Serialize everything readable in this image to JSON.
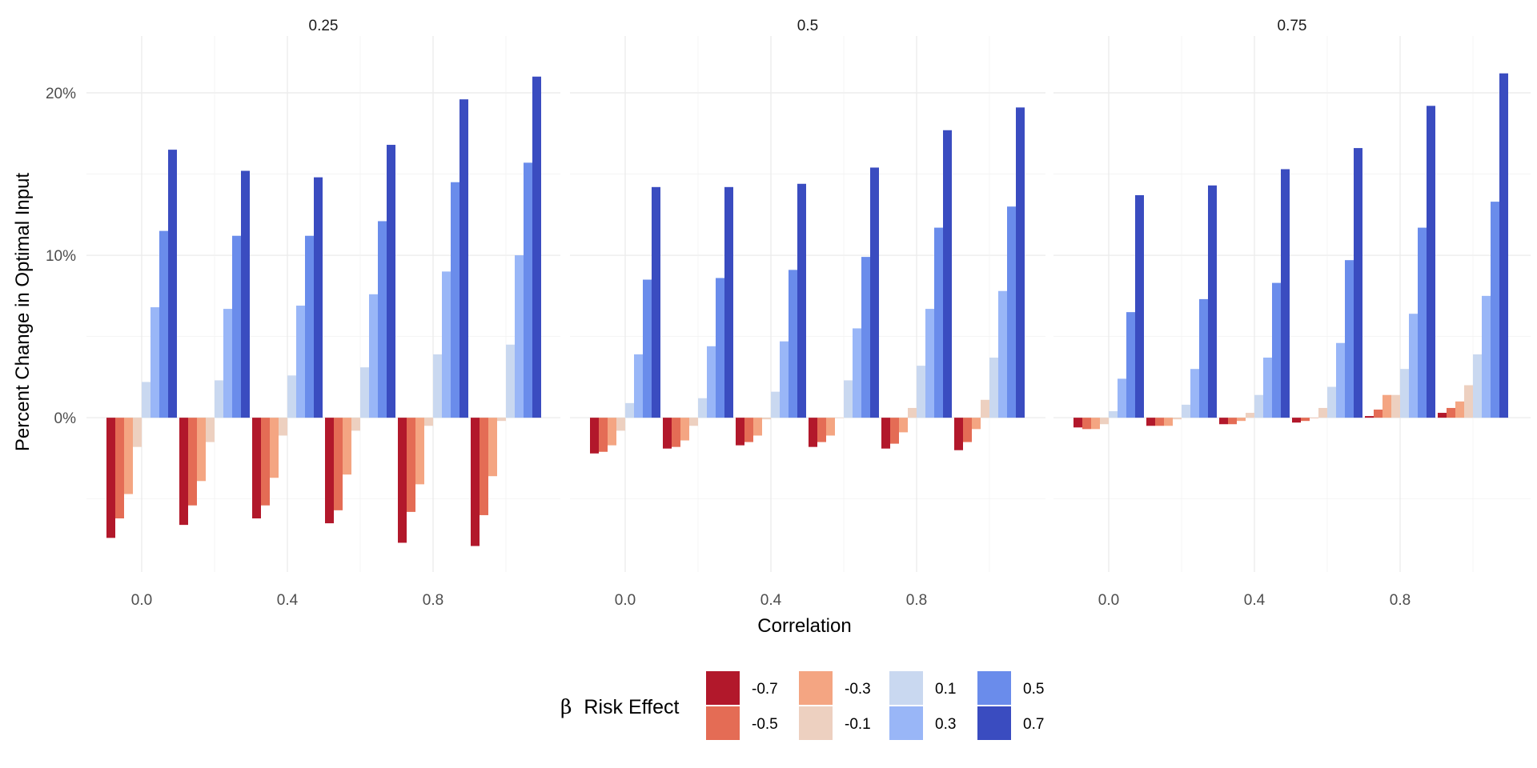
{
  "chart_data": {
    "type": "bar",
    "facets": [
      "0.25",
      "0.5",
      "0.75"
    ],
    "x_ticks": [
      "0.0",
      "0.4",
      "0.8"
    ],
    "correlation_groups": [
      "0.0",
      "0.2",
      "0.4",
      "0.6",
      "0.8",
      "1.0"
    ],
    "y_ticks": [
      "0%",
      "10%",
      "20%"
    ],
    "ylim": [
      -9.5,
      23.5
    ],
    "xlabel": "Correlation",
    "ylabel": "Percent Change in Optimal Input",
    "legend": {
      "title_symbol": "β",
      "title_text": "Risk Effect",
      "position": "bottom"
    },
    "series": [
      {
        "name": "-0.7",
        "color": "#B2182B"
      },
      {
        "name": "-0.5",
        "color": "#E46C55"
      },
      {
        "name": "-0.3",
        "color": "#F4A582"
      },
      {
        "name": "-0.1",
        "color": "#EDD0C0"
      },
      {
        "name": "0.1",
        "color": "#C9D8F0"
      },
      {
        "name": "0.3",
        "color": "#99B6F7"
      },
      {
        "name": "0.5",
        "color": "#6A8CEB"
      },
      {
        "name": "0.7",
        "color": "#3A4CC0"
      }
    ],
    "panels": [
      {
        "facet": "0.25",
        "values": [
          [
            -7.4,
            -6.2,
            -4.7,
            -1.8,
            2.2,
            6.8,
            11.5,
            16.5
          ],
          [
            -6.6,
            -5.4,
            -3.9,
            -1.5,
            2.3,
            6.7,
            11.2,
            15.2
          ],
          [
            -6.2,
            -5.4,
            -3.7,
            -1.1,
            2.6,
            6.9,
            11.2,
            14.8
          ],
          [
            -6.5,
            -5.7,
            -3.5,
            -0.8,
            3.1,
            7.6,
            12.1,
            16.8
          ],
          [
            -7.7,
            -5.8,
            -4.1,
            -0.5,
            3.9,
            9.0,
            14.5,
            19.6
          ],
          [
            -7.9,
            -6.0,
            -3.6,
            -0.2,
            4.5,
            10.0,
            15.7,
            21.0
          ]
        ]
      },
      {
        "facet": "0.5",
        "values": [
          [
            -2.2,
            -2.1,
            -1.7,
            -0.8,
            0.9,
            3.9,
            8.5,
            14.2
          ],
          [
            -1.9,
            -1.8,
            -1.4,
            -0.5,
            1.2,
            4.4,
            8.6,
            14.2
          ],
          [
            -1.7,
            -1.5,
            -1.1,
            -0.1,
            1.6,
            4.7,
            9.1,
            14.4
          ],
          [
            -1.8,
            -1.5,
            -1.1,
            0.0,
            2.3,
            5.5,
            9.9,
            15.4
          ],
          [
            -1.9,
            -1.6,
            -0.9,
            0.6,
            3.2,
            6.7,
            11.7,
            17.7
          ],
          [
            -2.0,
            -1.5,
            -0.7,
            1.1,
            3.7,
            7.8,
            13.0,
            19.1
          ]
        ]
      },
      {
        "facet": "0.75",
        "values": [
          [
            -0.6,
            -0.7,
            -0.7,
            -0.4,
            0.4,
            2.4,
            6.5,
            13.7
          ],
          [
            -0.5,
            -0.5,
            -0.5,
            -0.1,
            0.8,
            3.0,
            7.3,
            14.3
          ],
          [
            -0.4,
            -0.4,
            -0.2,
            0.3,
            1.4,
            3.7,
            8.3,
            15.3
          ],
          [
            -0.3,
            -0.2,
            0.0,
            0.6,
            1.9,
            4.6,
            9.7,
            16.6
          ],
          [
            0.1,
            0.5,
            1.4,
            1.4,
            3.0,
            6.4,
            11.7,
            19.2
          ],
          [
            0.3,
            0.6,
            1.0,
            2.0,
            3.9,
            7.5,
            13.3,
            21.2
          ]
        ]
      }
    ]
  }
}
